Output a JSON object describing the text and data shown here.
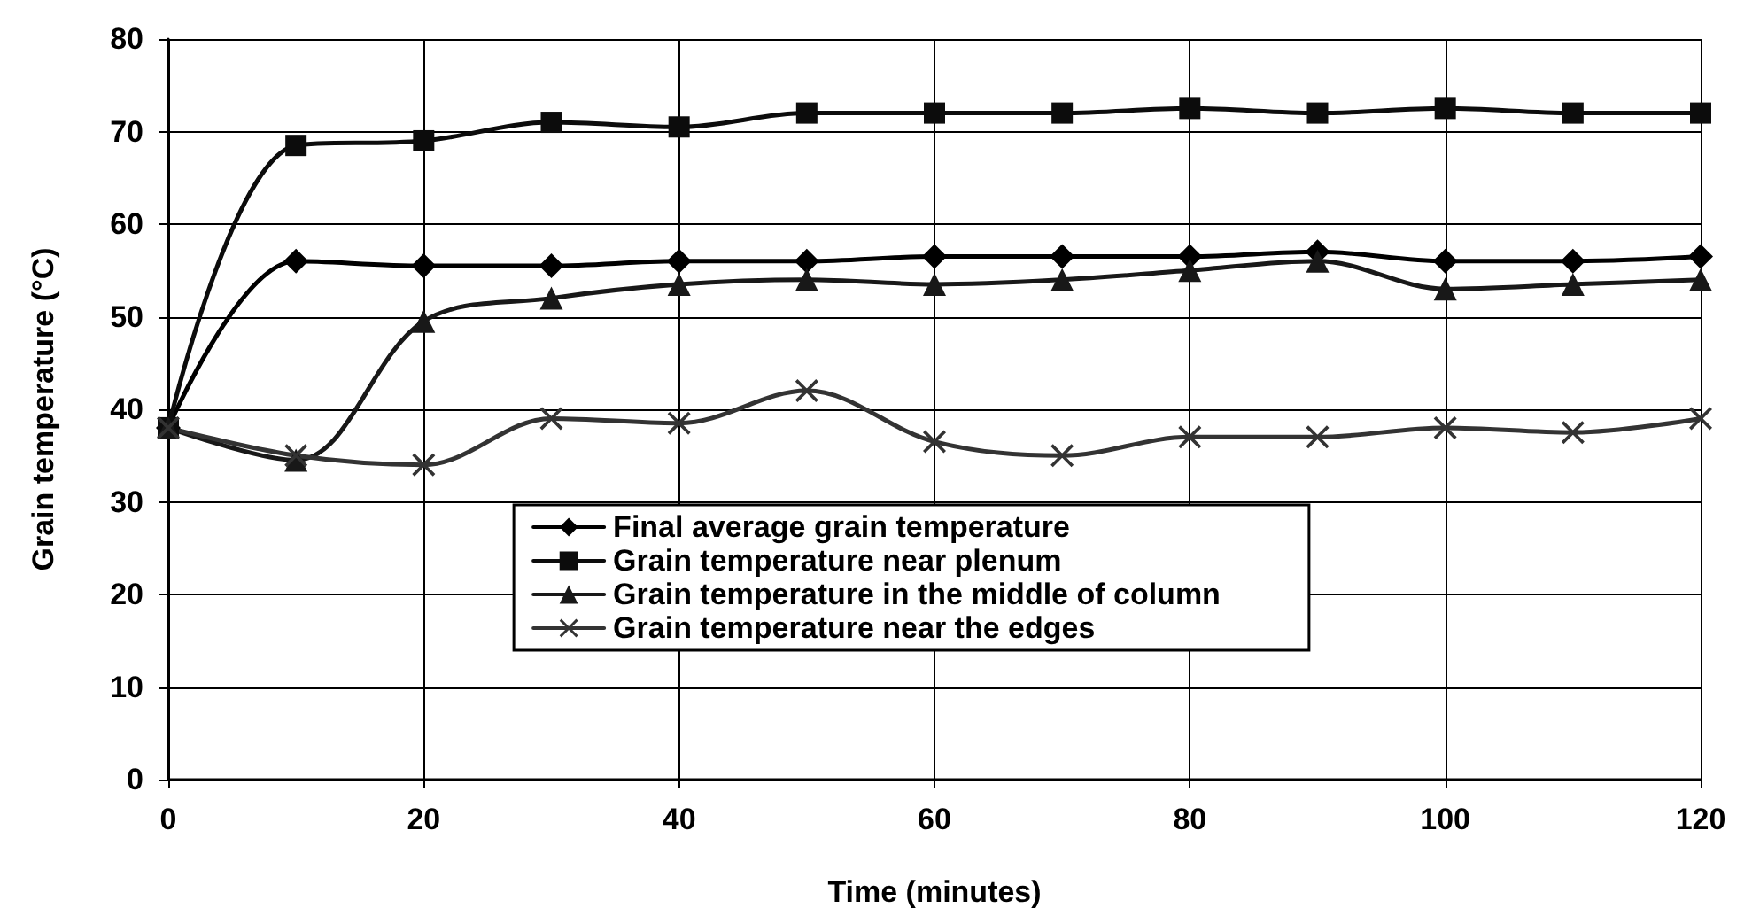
{
  "chart_data": {
    "type": "line",
    "xlabel": "Time (minutes)",
    "ylabel": "Grain temperature (°C)",
    "x": [
      0,
      10,
      20,
      30,
      40,
      50,
      60,
      70,
      80,
      90,
      100,
      110,
      120
    ],
    "series": [
      {
        "name": "Final average grain temperature",
        "color": "#000000",
        "marker": "diamond",
        "values": [
          38,
          56,
          55.5,
          55.5,
          56,
          56,
          56.5,
          56.5,
          56.5,
          57,
          56,
          56,
          56.5
        ]
      },
      {
        "name": "Grain temperature near plenum",
        "color": "#0c0c0c",
        "marker": "square",
        "values": [
          38,
          68.5,
          69,
          71,
          70.5,
          72,
          72,
          72,
          72.5,
          72,
          72.5,
          72,
          72
        ]
      },
      {
        "name": "Grain temperature in the middle of column",
        "color": "#181818",
        "marker": "triangle",
        "values": [
          38,
          34.5,
          49.5,
          52,
          53.5,
          54,
          53.5,
          54,
          55,
          56,
          53,
          53.5,
          54
        ]
      },
      {
        "name": "Grain temperature near the edges",
        "color": "#333333",
        "marker": "cross",
        "values": [
          38,
          35,
          34,
          39,
          38.5,
          42,
          36.5,
          35,
          37,
          37,
          38,
          37.5,
          39
        ]
      }
    ],
    "xlim": [
      0,
      120
    ],
    "xticks": [
      0,
      20,
      40,
      60,
      80,
      100,
      120
    ],
    "ylim": [
      0,
      80
    ],
    "yticks": [
      0,
      10,
      20,
      30,
      40,
      50,
      60,
      70,
      80
    ],
    "grid": true,
    "legend": "bottom",
    "line_style": "solid"
  }
}
